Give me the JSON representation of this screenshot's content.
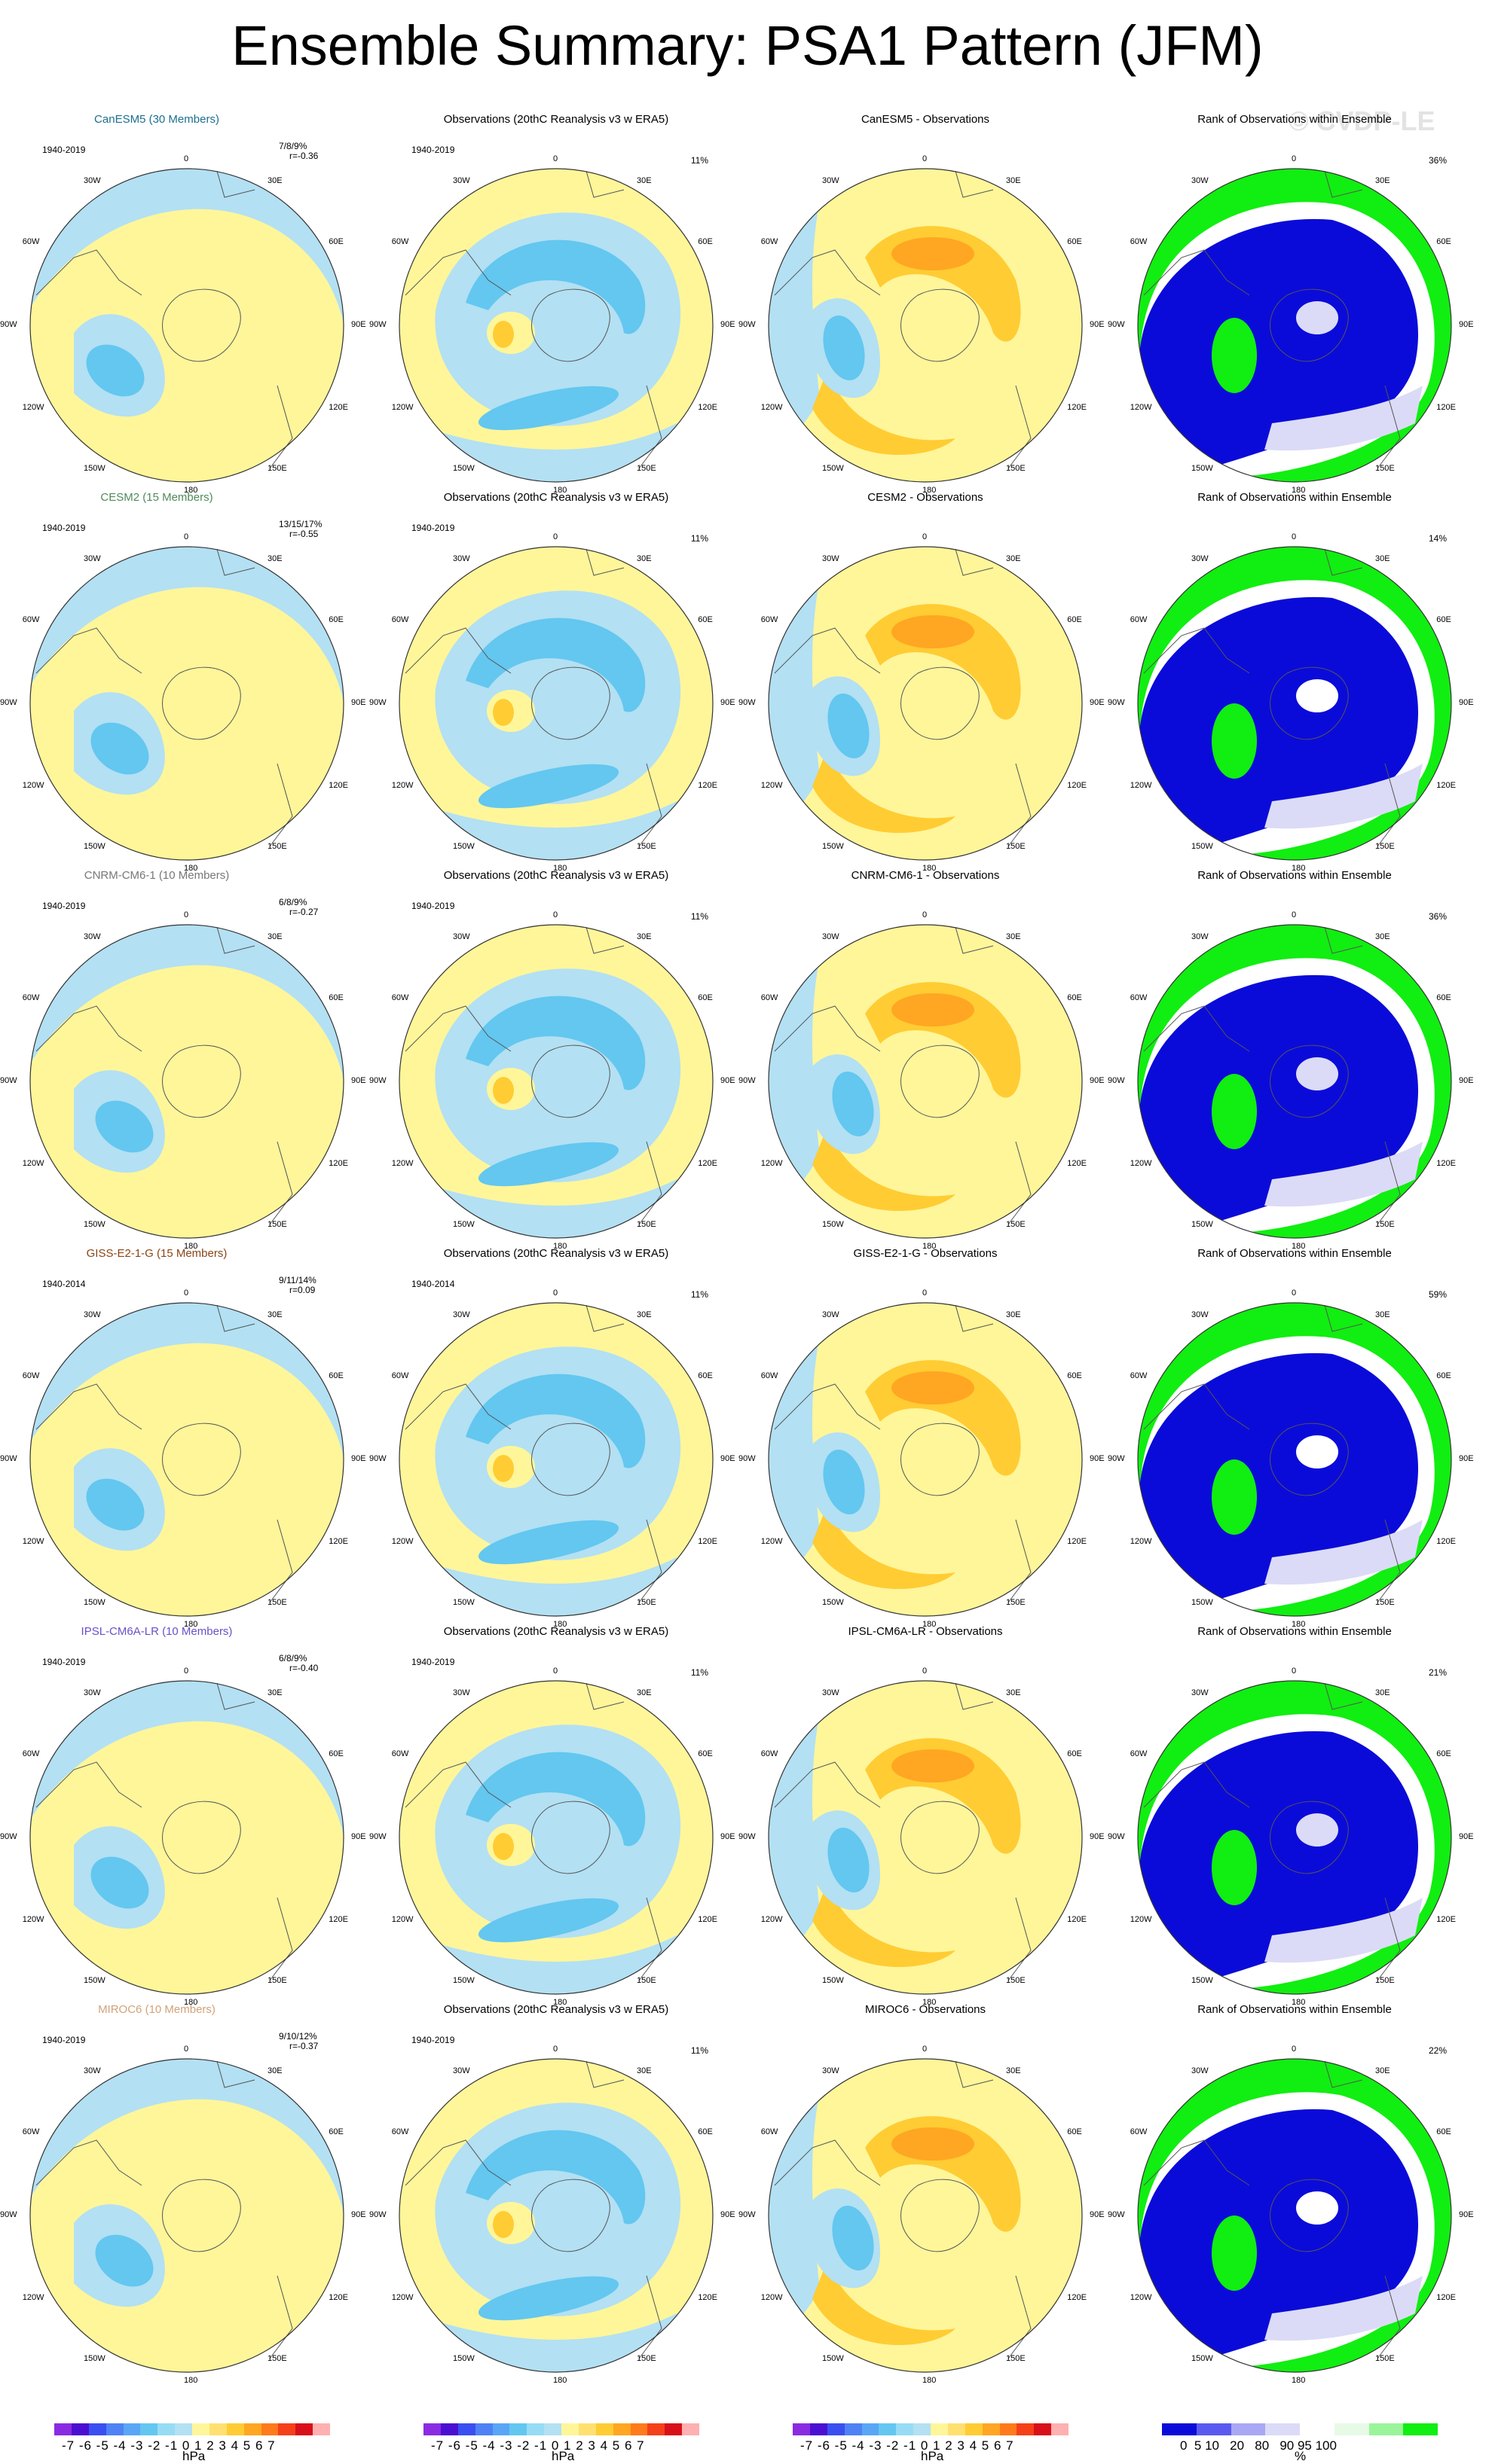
{
  "title": "Ensemble Summary: PSA1 Pattern (JFM)",
  "watermark": "© CVDP-LE",
  "obs_title": "Observations (20thC Reanalysis v3 w ERA5)",
  "rank_title": "Rank of Observations within Ensemble",
  "diff_suffix": " - Observations",
  "obs_pct": "11%",
  "colors": {
    "blue_dark": "#0b0bd9",
    "blue_mid": "#63c7f0",
    "blue_light": "#b3e0f3",
    "yellow": "#fff69a",
    "orange_light": "#ffcc33",
    "orange": "#ffa622",
    "green": "#11ee11",
    "lavender": "#dbdbf7"
  },
  "rows": [
    {
      "model": "CanESM5 (30 Members)",
      "model_color": "#1b6f8f",
      "period": "1940-2019",
      "stats": "7/8/9%",
      "r": "r=-0.36",
      "rank_pct": "36%"
    },
    {
      "model": "CESM2 (15 Members)",
      "model_color": "#4f8a5a",
      "period": "1940-2019",
      "stats": "13/15/17%",
      "r": "r=-0.55",
      "rank_pct": "14%"
    },
    {
      "model": "CNRM-CM6-1 (10 Members)",
      "model_color": "#777777",
      "period": "1940-2019",
      "stats": "6/8/9%",
      "r": "r=-0.27",
      "rank_pct": "36%"
    },
    {
      "model": "GISS-E2-1-G (15 Members)",
      "model_color": "#8b4513",
      "period": "1940-2014",
      "stats": "9/11/14%",
      "r": "r=0.09",
      "rank_pct": "59%"
    },
    {
      "model": "IPSL-CM6A-LR (10 Members)",
      "model_color": "#6a50c8",
      "period": "1940-2019",
      "stats": "6/8/9%",
      "r": "r=-0.40",
      "rank_pct": "21%"
    },
    {
      "model": "MIROC6 (10 Members)",
      "model_color": "#d2a27a",
      "period": "1940-2019",
      "stats": "9/10/12%",
      "r": "r=-0.37",
      "rank_pct": "22%"
    }
  ],
  "map_labels": [
    "0",
    "30E",
    "60E",
    "90E",
    "120E",
    "150E",
    "180",
    "150W",
    "120W",
    "90W",
    "60W",
    "30W"
  ],
  "colorbar": {
    "hpa_ticks": "-7 -6 -5 -4 -3 -2 -1 0 1 2 3 4 5 6 7",
    "hpa_unit": "hPa",
    "hpa_colors": [
      "#8a2be2",
      "#4b0fd2",
      "#3a4ff0",
      "#4f82f4",
      "#5aa6f6",
      "#63c7f0",
      "#97dcf4",
      "#b3e0f3",
      "#fff69a",
      "#ffe070",
      "#ffcc33",
      "#ffa622",
      "#ff7a1a",
      "#f5401a",
      "#d8101a",
      "#ffb0b0"
    ],
    "rank_ticks": "0  5 10   20   80   90 95 100",
    "rank_unit": "%",
    "rank_colors": [
      "#0b0bd9",
      "#5a5af0",
      "#a8a8f4",
      "#dbdbf7",
      "#ffffff",
      "#e6fae6",
      "#9af59a",
      "#11ee11"
    ]
  }
}
